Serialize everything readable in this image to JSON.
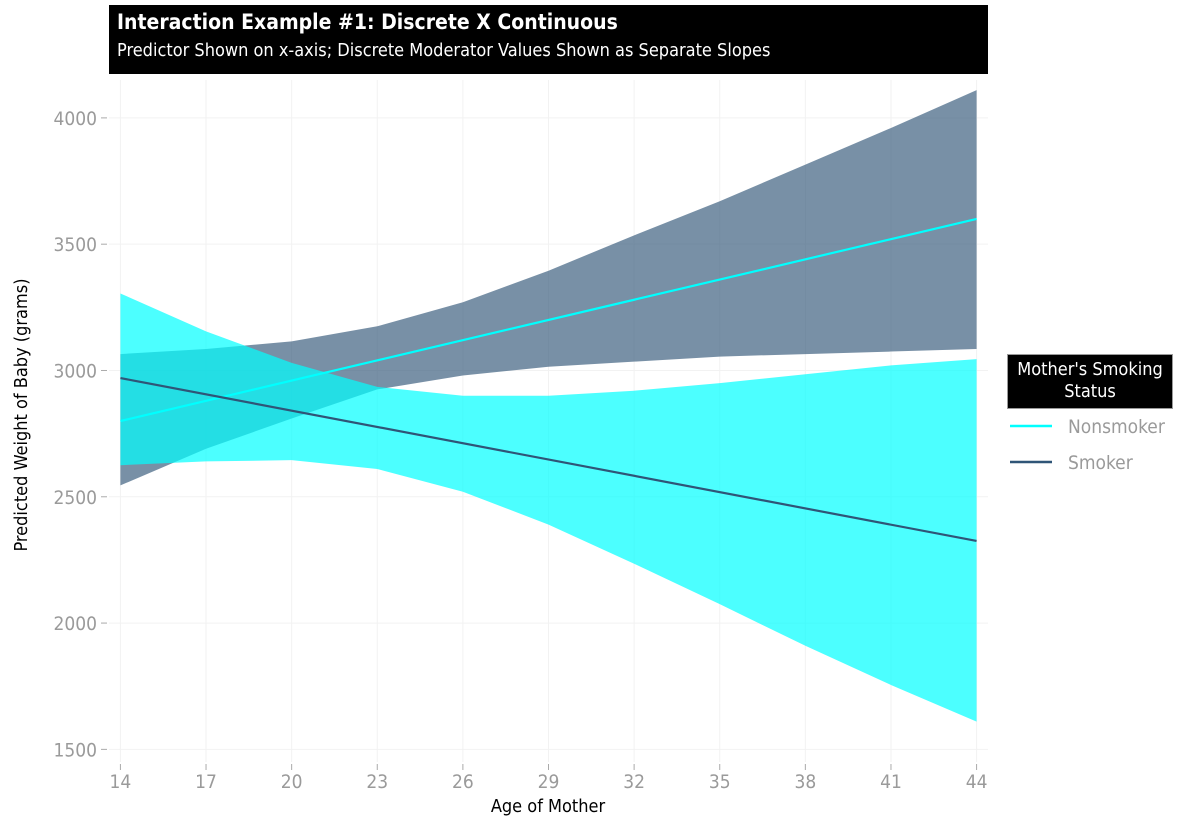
{
  "chart_data": {
    "type": "line",
    "title": "Interaction Example #1:  Discrete X Continuous",
    "subtitle": "Predictor Shown on x-axis; Discrete Moderator Values Shown as Separate Slopes",
    "xlabel": "Age of Mother",
    "ylabel": "Predicted Weight of Baby (grams)",
    "xlim": [
      13.6,
      44.4
    ],
    "ylim": [
      1450,
      4150
    ],
    "x_ticks": [
      14,
      17,
      20,
      23,
      26,
      29,
      32,
      35,
      38,
      41,
      44
    ],
    "y_ticks": [
      1500,
      2000,
      2500,
      3000,
      3500,
      4000
    ],
    "grid": true,
    "legend": {
      "title": "Mother's Smoking Status",
      "title_lines": [
        "Mother's Smoking",
        "Status"
      ],
      "position": "right"
    },
    "series": [
      {
        "name": "Nonsmoker",
        "color": "#00ffff",
        "x": [
          14,
          44
        ],
        "y": [
          2800,
          3600
        ],
        "band_x": [
          14,
          17,
          20,
          23,
          26,
          29,
          32,
          35,
          38,
          41,
          44
        ],
        "band_lower": [
          2625,
          2640,
          2645,
          2610,
          2520,
          2390,
          2235,
          2075,
          1910,
          1755,
          1610
        ],
        "band_upper": [
          3305,
          3155,
          3030,
          2935,
          2900,
          2900,
          2920,
          2950,
          2985,
          3020,
          3045
        ]
      },
      {
        "name": "Smoker",
        "color": "#2f5577",
        "x": [
          14,
          44
        ],
        "y": [
          2970,
          2325
        ],
        "band_x": [
          14,
          17,
          20,
          23,
          26,
          29,
          32,
          35,
          38,
          41,
          44
        ],
        "band_lower": [
          2545,
          2690,
          2810,
          2925,
          2980,
          3015,
          3035,
          3055,
          3065,
          3075,
          3085
        ],
        "band_upper": [
          3065,
          3085,
          3115,
          3175,
          3270,
          3395,
          3535,
          3670,
          3815,
          3960,
          4110
        ]
      }
    ]
  }
}
